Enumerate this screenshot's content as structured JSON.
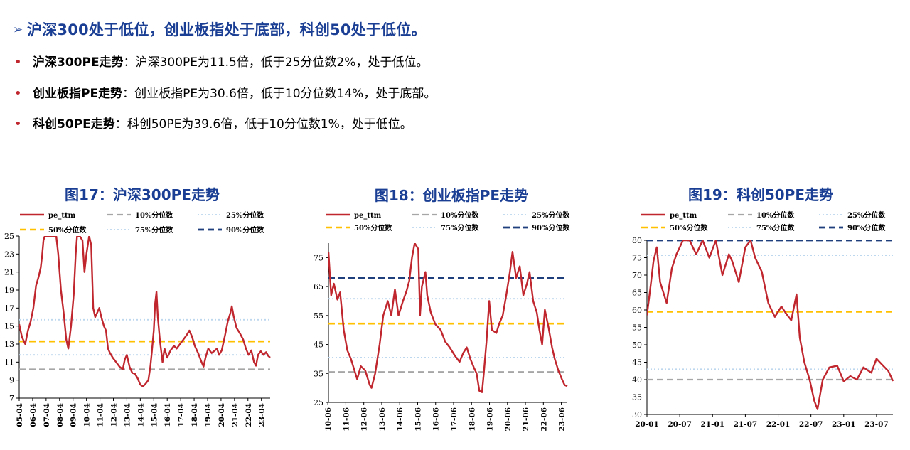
{
  "summary": {
    "headline_arrow": "➢",
    "headline": "沪深300处于低位，创业板指处于底部，科创50处于低位。",
    "bullets": [
      {
        "dot": "•",
        "key": "沪深300PE走势",
        "sep": "：",
        "text": "沪深300PE为11.5倍，低于25分位数2%，处于低位。"
      },
      {
        "dot": "•",
        "key": "创业板指PE走势",
        "sep": "：",
        "text": "创业板指PE为30.6倍，低于10分位数14%，处于底部。"
      },
      {
        "dot": "•",
        "key": "科创50PE走势",
        "sep": "：",
        "text": "科创50PE为39.6倍，低于10分位数1%，处于低位。"
      }
    ]
  },
  "colors": {
    "accent": "#1a3e93",
    "bullet": "#c0262d",
    "line": "#c0262d",
    "p10": "#a6a6a6",
    "p25": "#bdd7ee",
    "p50": "#ffc000",
    "p75": "#bdd7ee",
    "p90": "#1f3e7c"
  },
  "chart_data": [
    {
      "type": "line",
      "title": "图17：沪深300PE走势",
      "legend": [
        "pe_ttm",
        "10%分位数",
        "25%分位数",
        "50%分位数",
        "75%分位数",
        "90%分位数"
      ],
      "ylim": [
        7,
        25
      ],
      "yticks": [
        "7",
        "9",
        "11",
        "13",
        "15",
        "17",
        "19",
        "21",
        "23",
        "25"
      ],
      "xticks": [
        "05-04",
        "06-04",
        "07-04",
        "08-04",
        "09-04",
        "10-04",
        "11-04",
        "12-04",
        "13-04",
        "14-04",
        "15-04",
        "16-04",
        "17-04",
        "18-04",
        "19-04",
        "20-04",
        "21-04",
        "22-04",
        "23-04"
      ],
      "x_start": 2005.25,
      "x_end": 2023.9,
      "percentiles": {
        "p10": 10.2,
        "p25": 11.8,
        "p50": 13.3,
        "p75": 15.7
      },
      "series": [
        {
          "name": "pe_ttm",
          "points": [
            [
              2005.25,
              15.2
            ],
            [
              2005.45,
              13.8
            ],
            [
              2005.7,
              13.0
            ],
            [
              2005.9,
              14.5
            ],
            [
              2006.1,
              15.5
            ],
            [
              2006.3,
              17.0
            ],
            [
              2006.5,
              19.5
            ],
            [
              2006.7,
              20.5
            ],
            [
              2006.85,
              21.5
            ],
            [
              2006.95,
              22.8
            ],
            [
              2007.05,
              24.5
            ],
            [
              2007.15,
              25.0
            ],
            [
              2008.0,
              25.0
            ],
            [
              2008.15,
              23.0
            ],
            [
              2008.35,
              19.0
            ],
            [
              2008.55,
              16.5
            ],
            [
              2008.75,
              13.5
            ],
            [
              2008.9,
              12.5
            ],
            [
              2009.1,
              15.0
            ],
            [
              2009.3,
              18.5
            ],
            [
              2009.45,
              23.0
            ],
            [
              2009.55,
              25.0
            ],
            [
              2009.75,
              25.0
            ],
            [
              2009.95,
              24.5
            ],
            [
              2010.1,
              21.0
            ],
            [
              2010.25,
              23.0
            ],
            [
              2010.45,
              25.0
            ],
            [
              2010.6,
              24.0
            ],
            [
              2010.75,
              17.0
            ],
            [
              2010.9,
              16.0
            ],
            [
              2011.05,
              16.5
            ],
            [
              2011.2,
              17.0
            ],
            [
              2011.35,
              16.0
            ],
            [
              2011.55,
              15.0
            ],
            [
              2011.7,
              14.5
            ],
            [
              2011.85,
              12.5
            ],
            [
              2012.0,
              12.0
            ],
            [
              2012.2,
              11.5
            ],
            [
              2012.45,
              11.0
            ],
            [
              2012.7,
              10.5
            ],
            [
              2012.95,
              10.2
            ],
            [
              2013.1,
              11.3
            ],
            [
              2013.25,
              11.8
            ],
            [
              2013.45,
              10.5
            ],
            [
              2013.65,
              9.8
            ],
            [
              2013.85,
              9.7
            ],
            [
              2014.05,
              9.2
            ],
            [
              2014.25,
              8.5
            ],
            [
              2014.45,
              8.3
            ],
            [
              2014.65,
              8.6
            ],
            [
              2014.85,
              9.0
            ],
            [
              2015.0,
              10.5
            ],
            [
              2015.1,
              12.0
            ],
            [
              2015.25,
              14.5
            ],
            [
              2015.35,
              17.5
            ],
            [
              2015.45,
              18.8
            ],
            [
              2015.55,
              16.0
            ],
            [
              2015.7,
              13.5
            ],
            [
              2015.9,
              11.0
            ],
            [
              2016.05,
              12.5
            ],
            [
              2016.25,
              11.5
            ],
            [
              2016.5,
              12.3
            ],
            [
              2016.75,
              12.8
            ],
            [
              2016.95,
              12.5
            ],
            [
              2017.2,
              13.0
            ],
            [
              2017.45,
              13.5
            ],
            [
              2017.7,
              14.0
            ],
            [
              2017.9,
              14.5
            ],
            [
              2018.1,
              13.8
            ],
            [
              2018.3,
              12.8
            ],
            [
              2018.55,
              12.0
            ],
            [
              2018.8,
              11.0
            ],
            [
              2018.95,
              10.5
            ],
            [
              2019.1,
              11.5
            ],
            [
              2019.3,
              12.5
            ],
            [
              2019.55,
              12.0
            ],
            [
              2019.8,
              12.3
            ],
            [
              2019.95,
              12.5
            ],
            [
              2020.1,
              11.8
            ],
            [
              2020.3,
              12.3
            ],
            [
              2020.55,
              14.0
            ],
            [
              2020.75,
              15.5
            ],
            [
              2020.95,
              16.5
            ],
            [
              2021.05,
              17.2
            ],
            [
              2021.2,
              16.0
            ],
            [
              2021.4,
              14.8
            ],
            [
              2021.65,
              14.2
            ],
            [
              2021.9,
              13.5
            ],
            [
              2022.1,
              12.5
            ],
            [
              2022.3,
              11.8
            ],
            [
              2022.5,
              12.3
            ],
            [
              2022.7,
              11.0
            ],
            [
              2022.85,
              10.6
            ],
            [
              2023.0,
              11.8
            ],
            [
              2023.2,
              12.2
            ],
            [
              2023.4,
              11.8
            ],
            [
              2023.6,
              12.1
            ],
            [
              2023.75,
              11.7
            ],
            [
              2023.9,
              11.5
            ]
          ]
        }
      ]
    },
    {
      "type": "line",
      "title": "图18：创业板指PE走势",
      "legend": [
        "pe_ttm",
        "10%分位数",
        "25%分位数",
        "50%分位数",
        "75%分位数",
        "90%分位数"
      ],
      "ylim": [
        25,
        80
      ],
      "yticks": [
        "25",
        "35",
        "45",
        "55",
        "65",
        "75"
      ],
      "xticks": [
        "10-06",
        "11-06",
        "12-06",
        "13-06",
        "14-06",
        "15-06",
        "16-06",
        "17-06",
        "18-06",
        "19-06",
        "20-06",
        "21-06",
        "22-06",
        "23-06"
      ],
      "x_start": 2010.45,
      "x_end": 2023.75,
      "percentiles": {
        "p10": 35.5,
        "p25": 40.5,
        "p50": 52.2,
        "p75": 60.8,
        "p90": 68.0
      },
      "series": [
        {
          "name": "pe_ttm",
          "points": [
            [
              2010.45,
              77.0
            ],
            [
              2010.6,
              62.0
            ],
            [
              2010.75,
              66.0
            ],
            [
              2010.95,
              60.5
            ],
            [
              2011.1,
              63.0
            ],
            [
              2011.3,
              50.0
            ],
            [
              2011.5,
              43.0
            ],
            [
              2011.7,
              40.0
            ],
            [
              2011.9,
              36.0
            ],
            [
              2012.05,
              33.0
            ],
            [
              2012.25,
              37.5
            ],
            [
              2012.5,
              36.0
            ],
            [
              2012.75,
              31.0
            ],
            [
              2012.85,
              30.0
            ],
            [
              2013.05,
              35.0
            ],
            [
              2013.3,
              45.0
            ],
            [
              2013.5,
              55.0
            ],
            [
              2013.75,
              60.0
            ],
            [
              2013.95,
              55.0
            ],
            [
              2014.15,
              64.0
            ],
            [
              2014.35,
              55.0
            ],
            [
              2014.6,
              60.0
            ],
            [
              2014.8,
              63.5
            ],
            [
              2014.95,
              67.0
            ],
            [
              2015.1,
              75.0
            ],
            [
              2015.25,
              80.0
            ],
            [
              2015.45,
              78.0
            ],
            [
              2015.55,
              55.0
            ],
            [
              2015.65,
              65.0
            ],
            [
              2015.85,
              70.0
            ],
            [
              2015.95,
              62.0
            ],
            [
              2016.15,
              56.0
            ],
            [
              2016.4,
              52.0
            ],
            [
              2016.7,
              50.0
            ],
            [
              2016.95,
              46.0
            ],
            [
              2017.2,
              44.0
            ],
            [
              2017.5,
              41.0
            ],
            [
              2017.75,
              39.0
            ],
            [
              2017.95,
              42.0
            ],
            [
              2018.15,
              44.0
            ],
            [
              2018.35,
              40.0
            ],
            [
              2018.55,
              37.0
            ],
            [
              2018.7,
              35.0
            ],
            [
              2018.85,
              29.0
            ],
            [
              2019.0,
              28.5
            ],
            [
              2019.1,
              35.0
            ],
            [
              2019.25,
              46.0
            ],
            [
              2019.4,
              60.0
            ],
            [
              2019.55,
              50.0
            ],
            [
              2019.8,
              49.0
            ],
            [
              2019.95,
              52.0
            ],
            [
              2020.15,
              55.0
            ],
            [
              2020.35,
              62.0
            ],
            [
              2020.55,
              70.0
            ],
            [
              2020.7,
              77.0
            ],
            [
              2020.9,
              68.0
            ],
            [
              2021.1,
              72.0
            ],
            [
              2021.3,
              62.0
            ],
            [
              2021.5,
              66.0
            ],
            [
              2021.65,
              70.0
            ],
            [
              2021.85,
              60.0
            ],
            [
              2022.05,
              56.0
            ],
            [
              2022.2,
              50.0
            ],
            [
              2022.35,
              45.0
            ],
            [
              2022.5,
              57.0
            ],
            [
              2022.7,
              51.0
            ],
            [
              2022.9,
              44.0
            ],
            [
              2023.05,
              40.0
            ],
            [
              2023.25,
              36.0
            ],
            [
              2023.45,
              33.0
            ],
            [
              2023.6,
              31.0
            ],
            [
              2023.75,
              30.6
            ]
          ]
        }
      ]
    },
    {
      "type": "line",
      "title": "图19：科创50PE走势",
      "legend": [
        "pe_ttm",
        "10%分位数",
        "25%分位数",
        "50%分位数",
        "75%分位数",
        "90%分位数"
      ],
      "ylim": [
        30,
        80
      ],
      "yticks": [
        "30",
        "35",
        "40",
        "45",
        "50",
        "55",
        "60",
        "65",
        "70",
        "75",
        "80"
      ],
      "xticks": [
        "20-01",
        "20-07",
        "21-01",
        "21-07",
        "22-01",
        "22-07",
        "23-01",
        "23-07"
      ],
      "x_start": 2020.0,
      "x_end": 2023.75,
      "percentiles": {
        "p10": 40.0,
        "p25": 43.0,
        "p50": 59.5,
        "p75": 75.7,
        "p90": 80.0
      },
      "series": [
        {
          "name": "pe_ttm",
          "points": [
            [
              2020.0,
              58.5
            ],
            [
              2020.05,
              66.0
            ],
            [
              2020.1,
              74.0
            ],
            [
              2020.15,
              78.0
            ],
            [
              2020.2,
              68.0
            ],
            [
              2020.3,
              62.0
            ],
            [
              2020.38,
              72.0
            ],
            [
              2020.45,
              76.0
            ],
            [
              2020.55,
              80.0
            ],
            [
              2020.65,
              80.0
            ],
            [
              2020.75,
              76.0
            ],
            [
              2020.85,
              80.0
            ],
            [
              2020.95,
              75.0
            ],
            [
              2021.05,
              80.0
            ],
            [
              2021.15,
              70.0
            ],
            [
              2021.25,
              76.0
            ],
            [
              2021.3,
              74.0
            ],
            [
              2021.4,
              68.0
            ],
            [
              2021.5,
              78.0
            ],
            [
              2021.58,
              80.0
            ],
            [
              2021.65,
              75.0
            ],
            [
              2021.75,
              71.0
            ],
            [
              2021.85,
              62.0
            ],
            [
              2021.95,
              58.0
            ],
            [
              2022.05,
              61.0
            ],
            [
              2022.12,
              59.0
            ],
            [
              2022.2,
              57.0
            ],
            [
              2022.28,
              64.5
            ],
            [
              2022.33,
              52.0
            ],
            [
              2022.4,
              45.0
            ],
            [
              2022.48,
              40.0
            ],
            [
              2022.55,
              34.0
            ],
            [
              2022.6,
              31.5
            ],
            [
              2022.68,
              40.0
            ],
            [
              2022.78,
              43.5
            ],
            [
              2022.9,
              44.0
            ],
            [
              2023.0,
              39.5
            ],
            [
              2023.1,
              41.0
            ],
            [
              2023.2,
              40.0
            ],
            [
              2023.3,
              43.5
            ],
            [
              2023.42,
              42.0
            ],
            [
              2023.5,
              46.0
            ],
            [
              2023.6,
              44.0
            ],
            [
              2023.68,
              42.5
            ],
            [
              2023.75,
              39.6
            ]
          ]
        }
      ]
    }
  ]
}
